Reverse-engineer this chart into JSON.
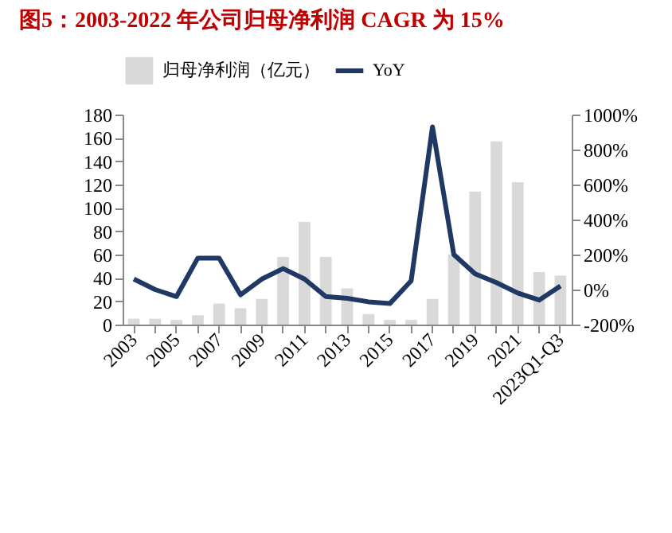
{
  "chart_data": {
    "type": "bar",
    "title": "图5：2003-2022 年公司归母净利润 CAGR 为 15%",
    "categories": [
      "2003",
      null,
      "2005",
      null,
      "2007",
      null,
      "2009",
      null,
      "2011",
      null,
      "2013",
      null,
      "2015",
      null,
      "2017",
      null,
      "2019",
      null,
      "2021",
      null,
      "2023Q1-Q3"
    ],
    "series": [
      {
        "name": "归母净利润（亿元）",
        "color": "#d9d9d9",
        "values": [
          5,
          5,
          4,
          8,
          18,
          14,
          22,
          58,
          88,
          58,
          31,
          9,
          4,
          4,
          22,
          60,
          114,
          157,
          122,
          45,
          42
        ]
      },
      {
        "name": "YoY",
        "type": "line",
        "axis": "y2",
        "color": "#1f3864",
        "values": [
          60,
          0,
          -40,
          180,
          180,
          -30,
          60,
          120,
          60,
          -40,
          -50,
          -70,
          -80,
          50,
          930,
          200,
          90,
          40,
          -20,
          -60,
          20
        ]
      }
    ],
    "ylim": [
      0,
      180
    ],
    "yticks": [
      0,
      20,
      40,
      60,
      80,
      100,
      120,
      140,
      160,
      180
    ],
    "y2lim": [
      -200,
      1000
    ],
    "y2ticks": [
      {
        "value": -200,
        "label": "-200%"
      },
      {
        "value": 0,
        "label": "0%"
      },
      {
        "value": 200,
        "label": "200%"
      },
      {
        "value": 400,
        "label": "400%"
      },
      {
        "value": 600,
        "label": "600%"
      },
      {
        "value": 800,
        "label": "800%"
      },
      {
        "value": 1000,
        "label": "1000%"
      }
    ],
    "legend": "top",
    "grid": false
  }
}
